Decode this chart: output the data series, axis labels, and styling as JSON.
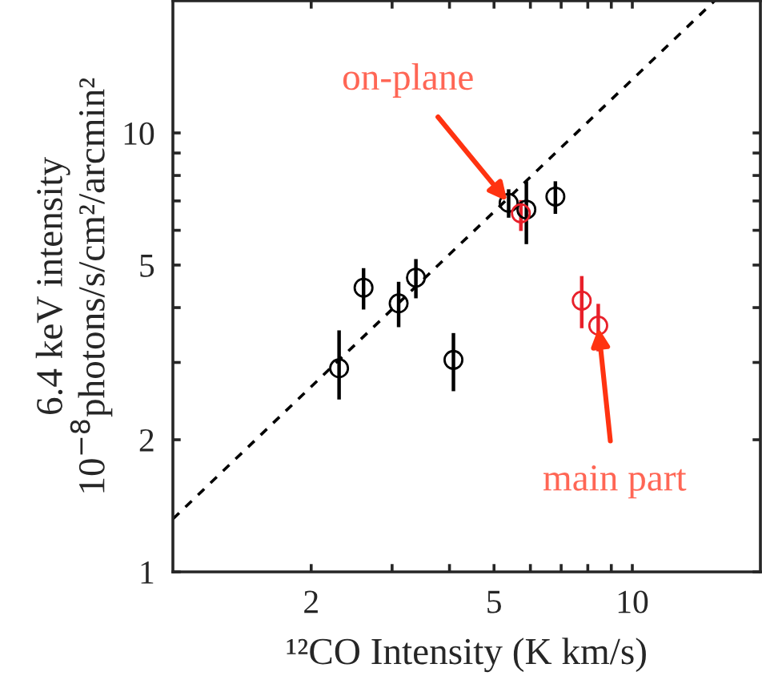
{
  "chart_data": {
    "type": "scatter",
    "xlabel": "¹²CO Intensity (K km/s)",
    "ylabel": "6.4 keV intensity\n10$^{−8}$photons/s/cm²/arcmin²",
    "log": "xy",
    "grid": false,
    "legend": false,
    "marker": "circle",
    "xlim": [
      1,
      19
    ],
    "ylim": [
      1,
      20
    ],
    "xticks": [
      2,
      {
        "value": 3,
        "label": null
      },
      {
        "value": 4,
        "label": null
      },
      5,
      {
        "value": 6,
        "label": null
      },
      {
        "value": 7,
        "label": null
      },
      {
        "value": 8,
        "label": null
      },
      {
        "value": 9,
        "label": null
      },
      10
    ],
    "yticks": [
      1,
      2,
      {
        "value": 3,
        "label": null
      },
      {
        "value": 4,
        "label": null
      },
      5,
      {
        "value": 6,
        "label": null
      },
      {
        "value": 7,
        "label": null
      },
      {
        "value": 8,
        "label": null
      },
      {
        "value": 9,
        "label": null
      },
      10
    ],
    "series": [
      {
        "color": "#000000",
        "x": [
          2.3,
          2.6,
          3.1,
          3.38,
          4.08,
          5.38,
          5.88,
          6.8
        ],
        "values": [
          2.91,
          4.44,
          4.09,
          4.68,
          3.04,
          6.93,
          6.69,
          7.16
        ],
        "errors": [
          [
            2.47,
            3.55
          ],
          [
            3.96,
            4.92
          ],
          [
            3.61,
            4.58
          ],
          [
            4.2,
            5.16
          ],
          [
            2.58,
            3.5
          ],
          [
            6.41,
            7.44
          ],
          [
            5.58,
            7.76
          ],
          [
            6.54,
            7.76
          ]
        ]
      },
      {
        "color": "#e8202a",
        "x": [
          5.72,
          7.76,
          8.43
        ],
        "values": [
          6.56,
          4.15,
          3.64
        ],
        "errors": [
          [
            5.98,
            7.03
          ],
          [
            3.59,
            4.72
          ],
          [
            3.18,
            4.08
          ]
        ]
      },
      {
        "type": "line",
        "color": "#000000",
        "line_style": "dashed",
        "marker": "none",
        "x": [
          1,
          15.1
        ],
        "values": [
          1.32,
          20
        ]
      }
    ],
    "annotations": [
      {
        "text": "on-plane",
        "x": 5.38,
        "y": 6.93
      },
      {
        "text": "main part",
        "x": 8.43,
        "y": 3.64
      }
    ]
  }
}
